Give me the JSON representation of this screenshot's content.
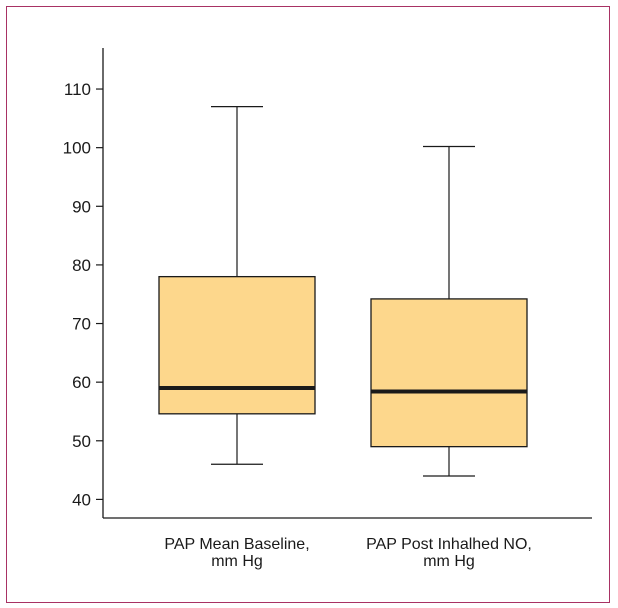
{
  "chart_data": {
    "type": "box",
    "title": "",
    "xlabel": "",
    "ylabel": "",
    "ylim": [
      37,
      117
    ],
    "yticks": [
      40,
      50,
      60,
      70,
      80,
      90,
      100,
      110
    ],
    "grid": false,
    "box_fill": "#fdd78c",
    "categories": [
      [
        "PAP Mean Baseline,",
        "mm Hg"
      ],
      [
        "PAP Post Inhalhed NO,",
        "mm Hg"
      ]
    ],
    "boxes": [
      {
        "whisker_low": 46,
        "q1": 54.6,
        "median": 59,
        "q3": 78,
        "whisker_high": 107
      },
      {
        "whisker_low": 44,
        "q1": 49,
        "median": 58.4,
        "q3": 74.2,
        "whisker_high": 100.2
      }
    ]
  }
}
